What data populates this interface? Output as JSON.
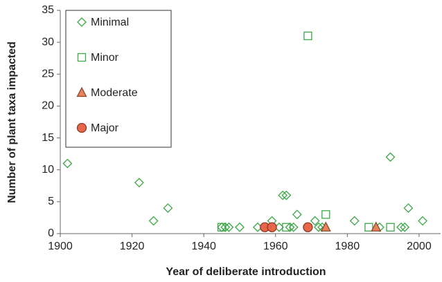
{
  "chart_data": {
    "type": "scatter",
    "x_label": "Year of deliberate introduction",
    "y_label": "Number of plant taxa impacted",
    "xlim": [
      1900,
      2006
    ],
    "ylim": [
      0,
      35
    ],
    "xticks": [
      1900,
      1920,
      1940,
      1960,
      1980,
      2000
    ],
    "yticks": [
      0,
      5,
      10,
      15,
      20,
      25,
      30,
      35
    ],
    "legend": "upper left",
    "series": [
      {
        "name": "Minimal",
        "marker": "diamond",
        "color": "#3aa846",
        "fill": "none",
        "x": [
          1902,
          1922,
          1926,
          1930,
          1945,
          1946,
          1947,
          1950,
          1955,
          1959,
          1961,
          1962,
          1963,
          1964,
          1965,
          1966,
          1971,
          1972,
          1973,
          1982,
          1989,
          1992,
          1995,
          1996,
          1997,
          2001
        ],
        "y": [
          11,
          8,
          2,
          4,
          1,
          1,
          1,
          1,
          1,
          2,
          1,
          6,
          6,
          1,
          1,
          3,
          2,
          1,
          1,
          2,
          1,
          12,
          1,
          1,
          4,
          2
        ]
      },
      {
        "name": "Minor",
        "marker": "square",
        "color": "#3aa846",
        "fill": "none",
        "x": [
          1945,
          1963,
          1969,
          1974,
          1986,
          1992
        ],
        "y": [
          1,
          1,
          31,
          3,
          1,
          1
        ]
      },
      {
        "name": "Moderate",
        "marker": "triangle",
        "color": "#8a4a30",
        "fill": "#e8825a",
        "x": [
          1974,
          1988
        ],
        "y": [
          1,
          1
        ]
      },
      {
        "name": "Major",
        "marker": "circle",
        "color": "#8a3a25",
        "fill": "#e8674a",
        "x": [
          1957,
          1959,
          1969
        ],
        "y": [
          1,
          1,
          1
        ]
      }
    ]
  }
}
